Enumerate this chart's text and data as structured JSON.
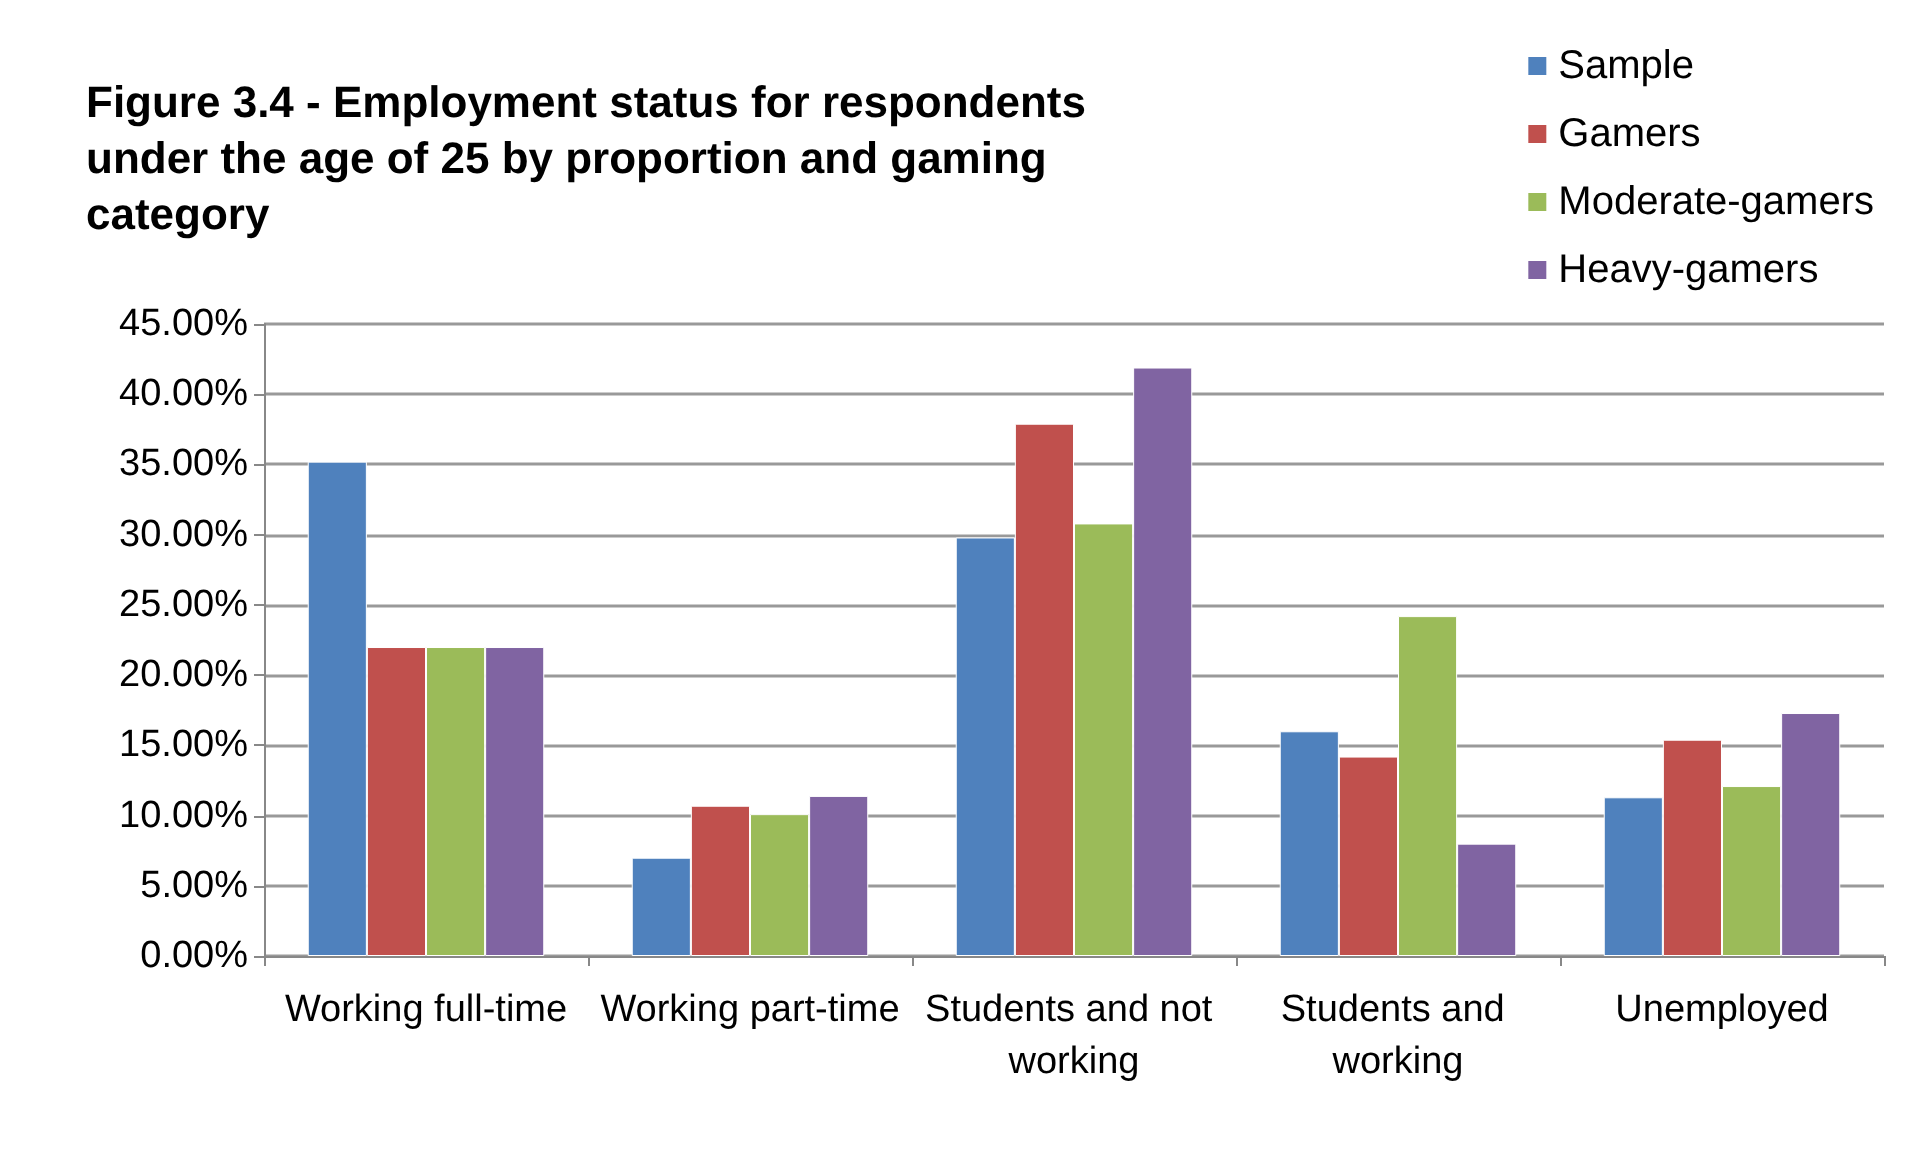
{
  "chart_data": {
    "type": "bar",
    "title": "Figure 3.4 - Employment status for respondents under the age of 25 by proportion and gaming category",
    "categories": [
      "Working full-time",
      "Working part-time",
      "Students and not working",
      "Students and working",
      "Unemployed"
    ],
    "series": [
      {
        "name": "Sample",
        "color": "#4f81bd",
        "values": [
          35.2,
          7.0,
          29.8,
          16.0,
          11.3
        ]
      },
      {
        "name": "Gamers",
        "color": "#c0504d",
        "values": [
          22.0,
          10.7,
          37.9,
          14.2,
          15.4
        ]
      },
      {
        "name": "Moderate-gamers",
        "color": "#9bbb59",
        "values": [
          22.0,
          10.1,
          30.8,
          24.2,
          12.1
        ]
      },
      {
        "name": "Heavy-gamers",
        "color": "#8064a2",
        "values": [
          22.0,
          11.4,
          41.9,
          8.0,
          17.3
        ]
      }
    ],
    "ylim": [
      0,
      45
    ],
    "yticks": [
      {
        "value": 0,
        "label": "0.00%"
      },
      {
        "value": 5,
        "label": "5.00%"
      },
      {
        "value": 10,
        "label": "10.00%"
      },
      {
        "value": 15,
        "label": "15.00%"
      },
      {
        "value": 20,
        "label": "20.00%"
      },
      {
        "value": 25,
        "label": "25.00%"
      },
      {
        "value": 30,
        "label": "30.00%"
      },
      {
        "value": 35,
        "label": "35.00%"
      },
      {
        "value": 40,
        "label": "40.00%"
      },
      {
        "value": 45,
        "label": "45.00%"
      }
    ],
    "grid": "y",
    "legend": "top right"
  }
}
